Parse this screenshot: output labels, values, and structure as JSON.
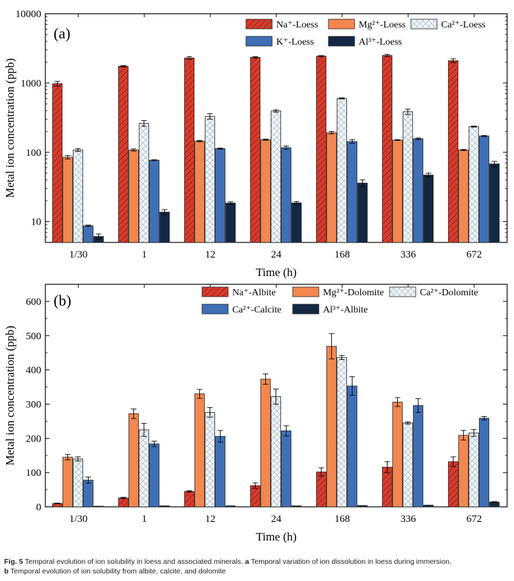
{
  "caption": {
    "label": "Fig. 5",
    "text": "Temporal evolution of ion solubility in loess and associated minerals.",
    "part_a_label": "a",
    "part_a_text": "Temporal variation of ion dissolution in loess during immersion.",
    "part_b_label": "b",
    "part_b_text": "Temporal evolution of ion solubility from albite, calcite, and dolomite"
  },
  "colors": {
    "red": "#d63b2c",
    "orange": "#f2874f",
    "hatch_bg": "#eef4f8",
    "hatch_line": "#7a8a98",
    "blue": "#3f6fb5",
    "navy": "#142843"
  },
  "chart_data": [
    {
      "panel": "(a)",
      "type": "bar",
      "yscale": "log",
      "ylim": [
        5,
        10000
      ],
      "yticks": [
        10,
        100,
        1000,
        10000
      ],
      "xlabel": "Time (h)",
      "ylabel": "Metal ion concentration (ppb)",
      "categories": [
        "1/30",
        "1",
        "12",
        "24",
        "168",
        "336",
        "672"
      ],
      "legend_placement": "top-right",
      "series": [
        {
          "name": "Na⁺-Loess",
          "style": "red",
          "values": [
            980,
            1750,
            2300,
            2350,
            2450,
            2500,
            2100
          ],
          "errors": [
            80,
            40,
            100,
            60,
            40,
            90,
            130
          ]
        },
        {
          "name": "Mg²⁺-Loess",
          "style": "orange",
          "values": [
            85,
            108,
            145,
            152,
            192,
            150,
            108
          ],
          "errors": [
            5,
            4,
            3,
            3,
            8,
            2,
            2
          ]
        },
        {
          "name": "Ca²⁺-Loess",
          "style": "hatch",
          "values": [
            108,
            262,
            330,
            395,
            600,
            385,
            235
          ],
          "errors": [
            5,
            25,
            30,
            15,
            10,
            35,
            4
          ]
        },
        {
          "name": "K⁺-Loess",
          "style": "blue",
          "values": [
            8.7,
            77,
            113,
            117,
            143,
            157,
            172
          ],
          "errors": [
            0.2,
            1,
            2,
            6,
            8,
            4,
            3
          ]
        },
        {
          "name": "Al³⁺-Loess",
          "style": "navy",
          "values": [
            6.1,
            13.7,
            18.5,
            18.6,
            36,
            47,
            68
          ],
          "errors": [
            0.5,
            1.2,
            0.8,
            0.8,
            4,
            3,
            6
          ]
        }
      ]
    },
    {
      "panel": "(b)",
      "type": "bar",
      "yscale": "linear",
      "ylim": [
        0,
        650
      ],
      "yticks": [
        0,
        100,
        200,
        300,
        400,
        500,
        600
      ],
      "xlabel": "Time (h)",
      "ylabel": "Metal ion concentration (ppb)",
      "categories": [
        "1/30",
        "1",
        "12",
        "24",
        "168",
        "336",
        "672"
      ],
      "legend_placement": "top-right",
      "series": [
        {
          "name": "Na⁺-Albite",
          "style": "red",
          "values": [
            10,
            26,
            45,
            62,
            102,
            116,
            132
          ],
          "errors": [
            1,
            2,
            2,
            8,
            12,
            16,
            14
          ]
        },
        {
          "name": "Mg²⁺-Dolomite",
          "style": "orange",
          "values": [
            145,
            272,
            330,
            373,
            469,
            306,
            209
          ],
          "errors": [
            8,
            14,
            13,
            15,
            37,
            13,
            14
          ]
        },
        {
          "name": "Ca²⁺-Dolomite",
          "style": "hatch",
          "values": [
            140,
            225,
            276,
            322,
            436,
            245,
            216
          ],
          "errors": [
            6,
            19,
            14,
            22,
            6,
            3,
            10
          ]
        },
        {
          "name": "Ca²⁺-Calcite",
          "style": "blue",
          "values": [
            78,
            184,
            206,
            222,
            353,
            296,
            259
          ],
          "errors": [
            9,
            8,
            17,
            15,
            27,
            20,
            5
          ]
        },
        {
          "name": "Al³⁺-Albite",
          "style": "navy",
          "values": [
            2,
            3,
            3,
            3,
            4,
            5,
            14
          ],
          "errors": [
            0,
            0,
            0,
            0,
            0,
            0,
            1
          ]
        }
      ]
    }
  ]
}
